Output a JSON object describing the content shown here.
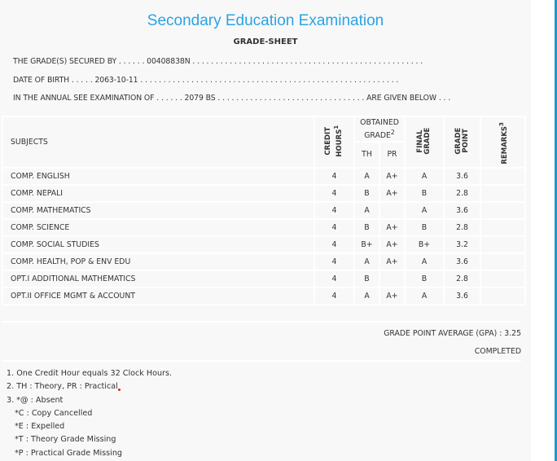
{
  "title": "Secondary Education Examination",
  "subtitle": "GRADE-SHEET",
  "info": {
    "secured_by": "THE GRADE(S) SECURED BY . . . . . . 00408838N . . . . . . . . . . . . . . . . . . . . . . . . . . . . . . . . . . . . . . . . . . . . . . . . . .",
    "dob": "DATE OF BIRTH . . . . . 2063-10-11 . . . . . . . . . . . . . . . . . . . . . . . . . . . . . . . . . . . . . . . . . . . . . . . . . . . . . . . .",
    "exam": "IN THE ANNUAL SEE EXAMINATION OF . . . . . . 2079 BS . . . . . . . . . . . . . . . . . . . . . . . . . . . . . . . . ARE GIVEN BELOW . . ."
  },
  "headers": {
    "subjects": "SUBJECTS",
    "credit": "CREDIT HOURS",
    "credit_sup": "1",
    "obtained": "OBTAINED GRADE",
    "obtained_sup": "2",
    "th": "TH",
    "pr": "PR",
    "final": "FINAL GRADE",
    "gp": "GRADE POINT",
    "remarks": "REMARKS",
    "remarks_sup": "3"
  },
  "rows": [
    {
      "subject": "COMP. ENGLISH",
      "credit": "4",
      "th": "A",
      "pr": "A+",
      "final": "A",
      "gp": "3.6",
      "remarks": ""
    },
    {
      "subject": "COMP. NEPALI",
      "credit": "4",
      "th": "B",
      "pr": "A+",
      "final": "B",
      "gp": "2.8",
      "remarks": ""
    },
    {
      "subject": "COMP. MATHEMATICS",
      "credit": "4",
      "th": "A",
      "pr": "",
      "final": "A",
      "gp": "3.6",
      "remarks": ""
    },
    {
      "subject": "COMP. SCIENCE",
      "credit": "4",
      "th": "B",
      "pr": "A+",
      "final": "B",
      "gp": "2.8",
      "remarks": ""
    },
    {
      "subject": "COMP. SOCIAL STUDIES",
      "credit": "4",
      "th": "B+",
      "pr": "A+",
      "final": "B+",
      "gp": "3.2",
      "remarks": ""
    },
    {
      "subject": "COMP. HEALTH, POP & ENV EDU",
      "credit": "4",
      "th": "A",
      "pr": "A+",
      "final": "A",
      "gp": "3.6",
      "remarks": ""
    },
    {
      "subject": "OPT.I ADDITIONAL MATHEMATICS",
      "credit": "4",
      "th": "B",
      "pr": "",
      "final": "B",
      "gp": "2.8",
      "remarks": ""
    },
    {
      "subject": "OPT.II OFFICE MGMT & ACCOUNT",
      "credit": "4",
      "th": "A",
      "pr": "A+",
      "final": "A",
      "gp": "3.6",
      "remarks": ""
    }
  ],
  "gpa": "GRADE POINT AVERAGE (GPA) : 3.25",
  "status": "COMPLETED",
  "notes": [
    "1. One Credit Hour equals 32 Clock Hours.",
    "2. TH : Theory, PR : Practical",
    "3. *@ : Absent",
    "*C : Copy Cancelled",
    "*E : Expelled",
    "*T : Theory Grade Missing",
    "*P : Practical Grade Missing"
  ],
  "colors": {
    "title": "#2ba3e3",
    "panel": "#f8f8f8",
    "accent_bar": "#1a9ad6"
  }
}
